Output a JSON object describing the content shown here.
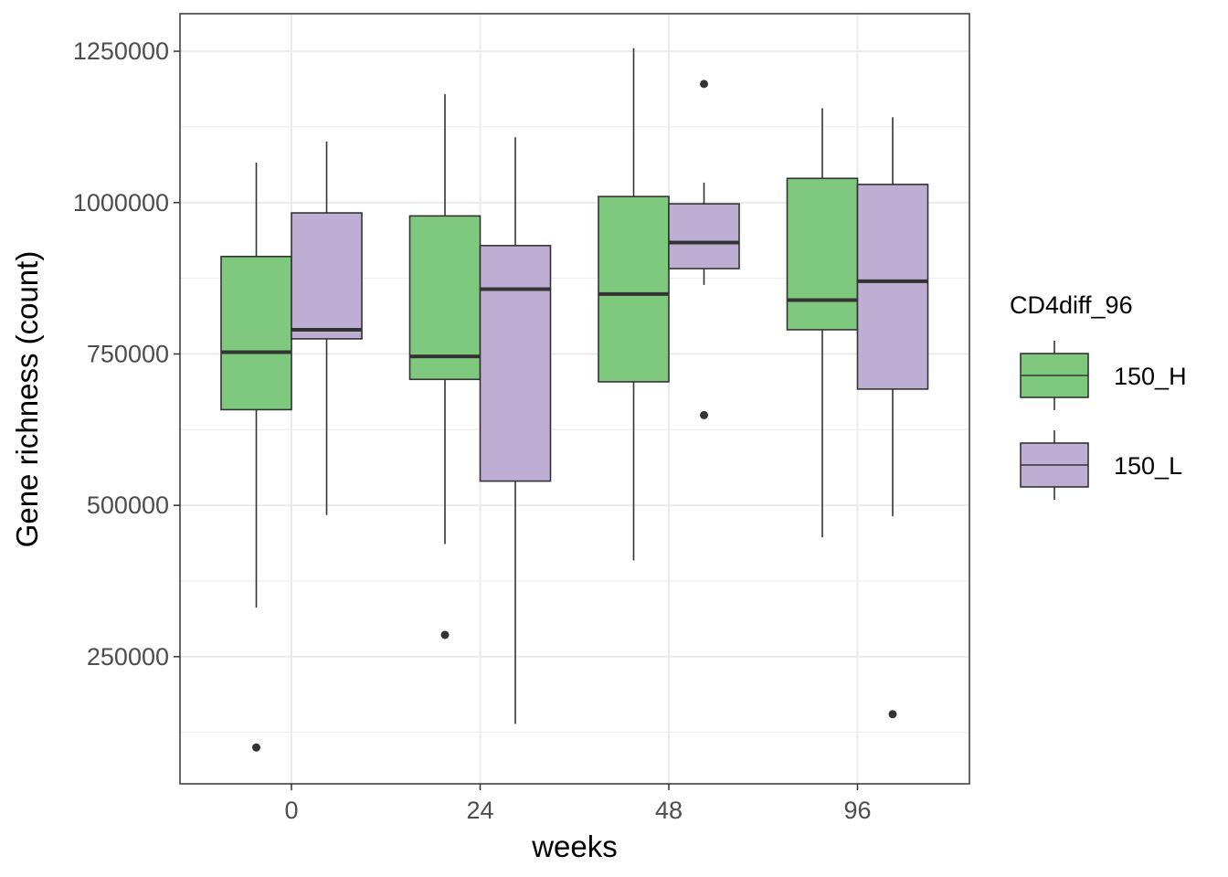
{
  "chart_data": {
    "type": "boxplot",
    "xlabel": "weeks",
    "ylabel": "Gene richness (count)",
    "categories": [
      "0",
      "24",
      "48",
      "96"
    ],
    "ylim": [
      40000,
      1312000
    ],
    "y_ticks": [
      250000,
      500000,
      750000,
      1000000,
      1250000
    ],
    "y_tick_labels": [
      "250000",
      "500000",
      "750000",
      "1000000",
      "1250000"
    ],
    "grid": true,
    "legend": {
      "title": "CD4diff_96",
      "position": "right"
    },
    "series": [
      {
        "name": "150_H",
        "color": "#7fc97f",
        "boxes": [
          {
            "category": "0",
            "whisker_low": 331000,
            "q1": 658000,
            "median": 753000,
            "q3": 911000,
            "whisker_high": 1066000,
            "outliers": [
              100000
            ]
          },
          {
            "category": "24",
            "whisker_low": 436000,
            "q1": 708000,
            "median": 746000,
            "q3": 978000,
            "whisker_high": 1179000,
            "outliers": [
              286000
            ]
          },
          {
            "category": "48",
            "whisker_low": 409000,
            "q1": 704000,
            "median": 849000,
            "q3": 1010000,
            "whisker_high": 1255000,
            "outliers": []
          },
          {
            "category": "96",
            "whisker_low": 447000,
            "q1": 790000,
            "median": 839000,
            "q3": 1040000,
            "whisker_high": 1156000,
            "outliers": []
          }
        ]
      },
      {
        "name": "150_L",
        "color": "#beaed4",
        "boxes": [
          {
            "category": "0",
            "whisker_low": 484000,
            "q1": 775000,
            "median": 790000,
            "q3": 983000,
            "whisker_high": 1101000,
            "outliers": []
          },
          {
            "category": "24",
            "whisker_low": 139000,
            "q1": 540000,
            "median": 857000,
            "q3": 929000,
            "whisker_high": 1108000,
            "outliers": []
          },
          {
            "category": "48",
            "whisker_low": 864000,
            "q1": 891000,
            "median": 934000,
            "q3": 998000,
            "whisker_high": 1033000,
            "outliers": [
              649000,
              1196000
            ]
          },
          {
            "category": "96",
            "whisker_low": 482000,
            "q1": 692000,
            "median": 870000,
            "q3": 1030000,
            "whisker_high": 1141000,
            "outliers": [
              155000
            ]
          }
        ]
      }
    ]
  }
}
